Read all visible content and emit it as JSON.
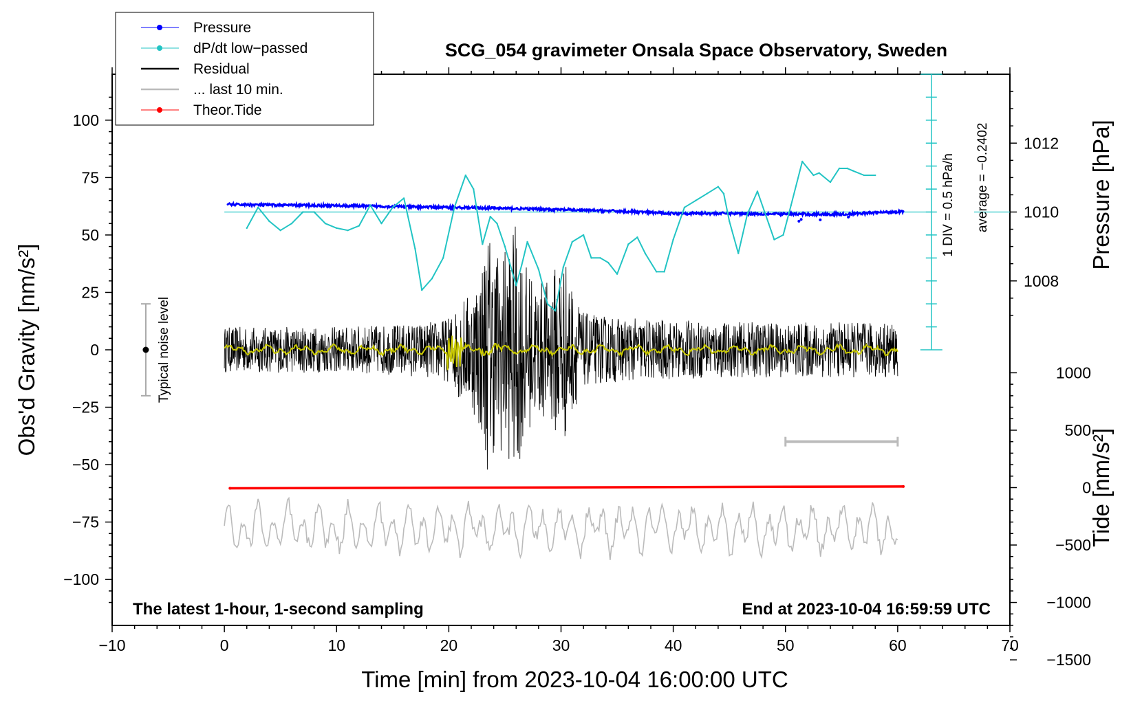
{
  "chart_data": {
    "type": "line",
    "title": "SCG_054 gravimeter Onsala Space Observatory, Sweden",
    "subtitle_left": "The latest 1-hour, 1-second sampling",
    "subtitle_right": "End at 2023-10-04 16:59:59 UTC",
    "xlabel": "Time [min] from 2023-10-04 16:00:00 UTC",
    "ylabel": "Obs'd Gravity [nm/s²]",
    "ylabel_right_top": "Pressure [hPa]",
    "ylabel_right_bottom": "Tide [nm/s²]",
    "xlim": [
      -10,
      70
    ],
    "ylim": [
      -120,
      120
    ],
    "xticks": [
      -10,
      0,
      10,
      20,
      30,
      40,
      50,
      60,
      70
    ],
    "xtick_labels": [
      "−10",
      "0",
      "10",
      "20",
      "30",
      "40",
      "50",
      "60",
      "70"
    ],
    "yticks": [
      -100,
      -75,
      -50,
      -25,
      0,
      25,
      50,
      75,
      100
    ],
    "ytick_labels": [
      "−100",
      "−75",
      "−50",
      "−25",
      "0",
      "25",
      "50",
      "75",
      "100"
    ],
    "pressure_axis": {
      "ticks": [
        1008,
        1010,
        1012
      ],
      "tick_labels": [
        "1008",
        "1010",
        "1012"
      ],
      "gravity_at_1010": 60,
      "gravity_per_hpa": 15
    },
    "tide_axis": {
      "ticks": [
        -1500,
        -1000,
        -500,
        0,
        500,
        1000
      ],
      "tick_labels": [
        "−1500",
        "−1000",
        "−500",
        "0",
        "500",
        "1000"
      ],
      "gravity_at_0": -60,
      "gravity_per_unit": 0.05
    },
    "dpdt_scale": {
      "label": "1 DIV = 0.5 hPa/h",
      "average_label": "average = −0.2402",
      "x": 63,
      "y_range": [
        0,
        120
      ],
      "baseline": 60
    },
    "noise_indicator": {
      "label": "Typical noise level",
      "x": -7,
      "center": 0,
      "range": [
        -20,
        20
      ]
    },
    "last10_bar": {
      "x_start": 50,
      "x_end": 60,
      "y": -40
    },
    "legend": [
      {
        "label": "Pressure",
        "color": "#0000ff",
        "marker": true
      },
      {
        "label": "dP/dt low−passed",
        "color": "#22c4c4",
        "marker": true
      },
      {
        "label": "Residual",
        "color": "#000000",
        "marker": false
      },
      {
        "label": "... last 10 min.",
        "color": "#bbbbbb",
        "marker": false
      },
      {
        "label": "Theor.Tide",
        "color": "#ff0000",
        "marker": true
      }
    ],
    "series": [
      {
        "name": "Pressure",
        "color": "#0000ff",
        "x": [
          0.3,
          5,
          10,
          15,
          20,
          25,
          30,
          35,
          40,
          45,
          50,
          55,
          60.5
        ],
        "values": [
          63.3,
          63.0,
          62.8,
          62.4,
          62.0,
          61.6,
          61.0,
          60.4,
          59.4,
          59.4,
          59.1,
          59.0,
          60.3
        ]
      },
      {
        "name": "dP/dt low-passed",
        "color": "#22c4c4",
        "x": [
          2,
          3,
          4,
          5,
          6,
          7,
          8,
          9,
          10,
          11,
          12,
          13,
          14,
          15,
          16,
          17,
          17.6,
          18.5,
          19.5,
          20.5,
          21.5,
          22.2,
          23,
          23.7,
          24.3,
          25,
          26,
          26.5,
          27,
          28,
          28.8,
          29.5,
          30.2,
          31,
          32,
          32.7,
          33.5,
          34.2,
          35,
          36,
          36.8,
          37.5,
          38.5,
          39.2,
          40,
          41,
          42,
          43,
          44,
          44.5,
          45,
          45.8,
          46.6,
          47.5,
          48.5,
          49,
          49.8,
          50.5,
          51.5,
          52.5,
          53,
          54,
          54.8,
          55.5,
          56,
          57,
          58
        ],
        "values": [
          53,
          62,
          56,
          52,
          55,
          60,
          60,
          55,
          53,
          52,
          54,
          63,
          55,
          62,
          66,
          44,
          26,
          31,
          40,
          62,
          76,
          70,
          46,
          58,
          55,
          45,
          28,
          37,
          47,
          35,
          20,
          17,
          36,
          47,
          50,
          40,
          40,
          38,
          33,
          46,
          49,
          42,
          34,
          34,
          48,
          62,
          65,
          68,
          71,
          68,
          56,
          42,
          59,
          69,
          55,
          48,
          50,
          63,
          82,
          76,
          77,
          73,
          79,
          79,
          78,
          76,
          76
        ]
      },
      {
        "name": "Theor.Tide",
        "color": "#ff0000",
        "x": [
          0.5,
          60.5
        ],
        "values": [
          -60.3,
          -59.5
        ]
      }
    ],
    "residual_envelope": {
      "x": [
        0,
        5,
        10,
        15,
        18,
        20,
        21,
        22,
        23,
        23.5,
        24,
        25,
        26,
        27,
        28,
        29,
        30,
        30.5,
        31,
        32,
        35,
        40,
        45,
        50,
        55,
        60
      ],
      "amplitude": [
        10,
        10,
        10,
        11,
        12,
        14,
        22,
        25,
        40,
        55,
        45,
        45,
        55,
        35,
        30,
        30,
        45,
        38,
        28,
        16,
        14,
        13,
        12,
        12,
        12,
        12
      ]
    }
  }
}
